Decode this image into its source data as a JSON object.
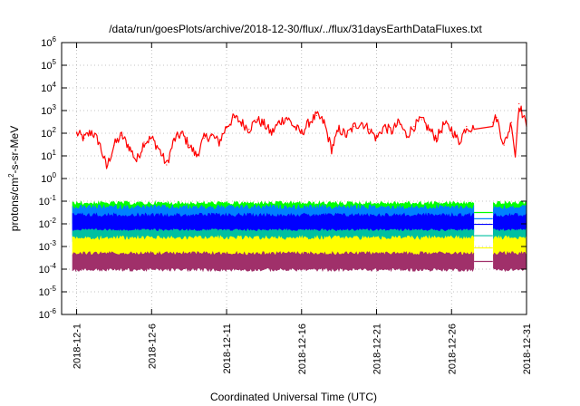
{
  "chart_data": {
    "type": "line",
    "title": "/data/run/goesPlots/archive/2018-12-30/flux/../flux/31daysEarthDataFluxes.txt",
    "xlabel": "Coordinated Universal Time (UTC)",
    "ylabel": {
      "prefix": "protons/cm",
      "sup": "2",
      "suffix": "-s-sr-MeV"
    },
    "yscale": "log",
    "ylim": [
      1e-06,
      1000000.0
    ],
    "y_ticks": [
      {
        "base": "10",
        "exp": "-6"
      },
      {
        "base": "10",
        "exp": "-5"
      },
      {
        "base": "10",
        "exp": "-4"
      },
      {
        "base": "10",
        "exp": "-3"
      },
      {
        "base": "10",
        "exp": "-2"
      },
      {
        "base": "10",
        "exp": "-1"
      },
      {
        "base": "10",
        "exp": "0"
      },
      {
        "base": "10",
        "exp": "1"
      },
      {
        "base": "10",
        "exp": "2"
      },
      {
        "base": "10",
        "exp": "3"
      },
      {
        "base": "10",
        "exp": "4"
      },
      {
        "base": "10",
        "exp": "5"
      },
      {
        "base": "10",
        "exp": "6"
      }
    ],
    "xlim": [
      "2018-11-30",
      "2018-12-31"
    ],
    "x_ticks": [
      "2018-12-1",
      "2018-12-6",
      "2018-12-11",
      "2018-12-16",
      "2018-12-21",
      "2018-12-26",
      "2018-12-31"
    ],
    "grid": true,
    "data_gap": [
      "2018-12-27T12:00",
      "2018-12-28T18:00"
    ],
    "series": [
      {
        "color": "#ff0000",
        "kind": "line",
        "points": [
          [
            "2018-12-01T00:00",
            100
          ],
          [
            "2018-12-01T12:00",
            60
          ],
          [
            "2018-12-02T00:00",
            120
          ],
          [
            "2018-12-02T12:00",
            40
          ],
          [
            "2018-12-03T00:00",
            3
          ],
          [
            "2018-12-03T12:00",
            30
          ],
          [
            "2018-12-04T00:00",
            80
          ],
          [
            "2018-12-04T12:00",
            25
          ],
          [
            "2018-12-05T00:00",
            6
          ],
          [
            "2018-12-05T12:00",
            40
          ],
          [
            "2018-12-06T00:00",
            60
          ],
          [
            "2018-12-06T12:00",
            20
          ],
          [
            "2018-12-07T00:00",
            4
          ],
          [
            "2018-12-07T12:00",
            50
          ],
          [
            "2018-12-08T00:00",
            100
          ],
          [
            "2018-12-08T12:00",
            30
          ],
          [
            "2018-12-09T00:00",
            10
          ],
          [
            "2018-12-09T12:00",
            60
          ],
          [
            "2018-12-10T00:00",
            80
          ],
          [
            "2018-12-10T12:00",
            40
          ],
          [
            "2018-12-11T00:00",
            200
          ],
          [
            "2018-12-11T12:00",
            500
          ],
          [
            "2018-12-12T00:00",
            300
          ],
          [
            "2018-12-12T12:00",
            150
          ],
          [
            "2018-12-13T00:00",
            400
          ],
          [
            "2018-12-13T12:00",
            250
          ],
          [
            "2018-12-14T00:00",
            100
          ],
          [
            "2018-12-14T12:00",
            300
          ],
          [
            "2018-12-15T00:00",
            500
          ],
          [
            "2018-12-15T12:00",
            200
          ],
          [
            "2018-12-16T00:00",
            100
          ],
          [
            "2018-12-16T12:00",
            300
          ],
          [
            "2018-12-17T00:00",
            600
          ],
          [
            "2018-12-17T12:00",
            300
          ],
          [
            "2018-12-18T00:00",
            20
          ],
          [
            "2018-12-18T12:00",
            150
          ],
          [
            "2018-12-19T00:00",
            80
          ],
          [
            "2018-12-19T12:00",
            200
          ],
          [
            "2018-12-20T00:00",
            300
          ],
          [
            "2018-12-20T12:00",
            150
          ],
          [
            "2018-12-21T00:00",
            60
          ],
          [
            "2018-12-21T12:00",
            200
          ],
          [
            "2018-12-22T00:00",
            120
          ],
          [
            "2018-12-22T12:00",
            300
          ],
          [
            "2018-12-23T00:00",
            80
          ],
          [
            "2018-12-23T12:00",
            200
          ],
          [
            "2018-12-24T00:00",
            400
          ],
          [
            "2018-12-24T12:00",
            150
          ],
          [
            "2018-12-25T00:00",
            60
          ],
          [
            "2018-12-25T12:00",
            250
          ],
          [
            "2018-12-26T00:00",
            150
          ],
          [
            "2018-12-26T12:00",
            40
          ],
          [
            "2018-12-27T00:00",
            200
          ],
          [
            "2018-12-27T12:00",
            150
          ],
          [
            "2018-12-28T18:00",
            300
          ],
          [
            "2018-12-29T00:00",
            500
          ],
          [
            "2018-12-29T12:00",
            30
          ],
          [
            "2018-12-30T00:00",
            300
          ],
          [
            "2018-12-30T06:00",
            10
          ],
          [
            "2018-12-30T12:00",
            2000
          ],
          [
            "2018-12-31T00:00",
            200
          ]
        ]
      },
      {
        "color": "#00ff00",
        "kind": "band",
        "low": 0.01,
        "high": 0.1
      },
      {
        "color": "#0080ff",
        "kind": "band",
        "low": 0.004,
        "high": 0.07
      },
      {
        "color": "#0000ff",
        "kind": "band",
        "low": 0.003,
        "high": 0.03
      },
      {
        "color": "#00c0a0",
        "kind": "band",
        "low": 0.0015,
        "high": 0.006
      },
      {
        "color": "#ffff00",
        "kind": "band",
        "low": 0.00025,
        "high": 0.003
      },
      {
        "color": "#a0306a",
        "kind": "band",
        "low": 8e-05,
        "high": 0.0006
      }
    ]
  }
}
